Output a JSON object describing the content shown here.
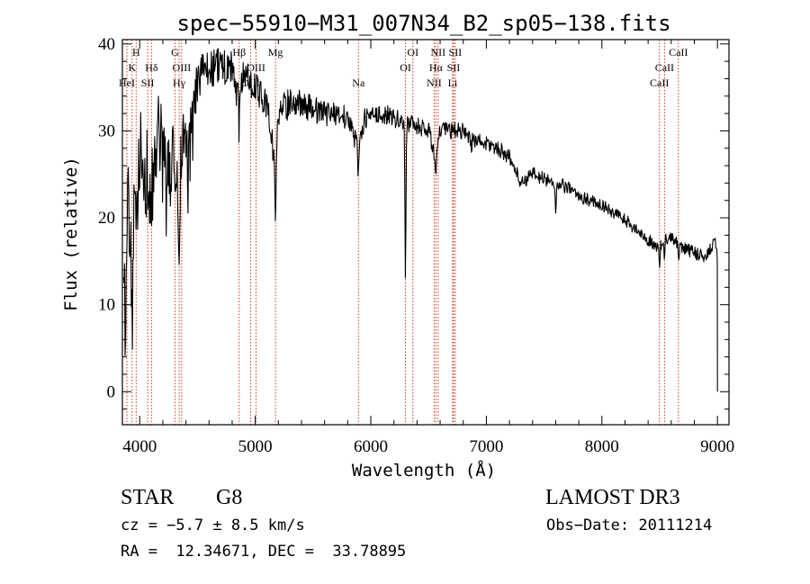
{
  "chart_data": {
    "type": "line",
    "title": "spec−55910−M31_007N34_B2_sp05−138.fits",
    "xlabel": "Wavelength (Å)",
    "ylabel": "Flux (relative)",
    "xlim": [
      3850,
      9100
    ],
    "ylim": [
      -3.8,
      40.5
    ],
    "xticks": [
      4000,
      5000,
      6000,
      7000,
      8000,
      9000
    ],
    "yticks": [
      0,
      10,
      20,
      30,
      40
    ],
    "grid": false,
    "series": [
      {
        "name": "flux",
        "anchors": [
          [
            3880,
            10
          ],
          [
            3900,
            22
          ],
          [
            3930,
            14
          ],
          [
            3960,
            20
          ],
          [
            4000,
            28
          ],
          [
            4040,
            26
          ],
          [
            4100,
            23
          ],
          [
            4150,
            30
          ],
          [
            4200,
            27
          ],
          [
            4250,
            24
          ],
          [
            4300,
            28
          ],
          [
            4330,
            20
          ],
          [
            4380,
            30
          ],
          [
            4420,
            25
          ],
          [
            4500,
            36
          ],
          [
            4600,
            37
          ],
          [
            4700,
            37.5
          ],
          [
            4800,
            37
          ],
          [
            4861,
            33
          ],
          [
            4900,
            37
          ],
          [
            5000,
            35
          ],
          [
            5100,
            33
          ],
          [
            5175,
            26
          ],
          [
            5200,
            32
          ],
          [
            5300,
            33.5
          ],
          [
            5400,
            33
          ],
          [
            5500,
            32.5
          ],
          [
            5600,
            32
          ],
          [
            5700,
            32
          ],
          [
            5800,
            31.5
          ],
          [
            5893,
            28
          ],
          [
            5950,
            31.5
          ],
          [
            6000,
            31.5
          ],
          [
            6100,
            32
          ],
          [
            6200,
            31.5
          ],
          [
            6300,
            31
          ],
          [
            6400,
            30.5
          ],
          [
            6500,
            30
          ],
          [
            6563,
            27
          ],
          [
            6600,
            30
          ],
          [
            6700,
            30
          ],
          [
            6800,
            30
          ],
          [
            6900,
            29
          ],
          [
            7000,
            28.5
          ],
          [
            7100,
            28
          ],
          [
            7200,
            27
          ],
          [
            7300,
            24
          ],
          [
            7400,
            25
          ],
          [
            7500,
            24.5
          ],
          [
            7600,
            24
          ],
          [
            7700,
            23.5
          ],
          [
            7800,
            22.5
          ],
          [
            7900,
            22
          ],
          [
            8000,
            21.5
          ],
          [
            8100,
            20.5
          ],
          [
            8200,
            19.8
          ],
          [
            8300,
            18.5
          ],
          [
            8400,
            17.5
          ],
          [
            8498,
            16.5
          ],
          [
            8542,
            17.5
          ],
          [
            8600,
            18
          ],
          [
            8662,
            17
          ],
          [
            8700,
            16.5
          ],
          [
            8800,
            16
          ],
          [
            8900,
            15.5
          ],
          [
            8980,
            17.5
          ],
          [
            9000,
            15.5
          ]
        ],
        "absorption_features": [
          [
            3934,
            7
          ],
          [
            3968,
            6
          ],
          [
            4101,
            5
          ],
          [
            4226,
            4
          ],
          [
            4300,
            6
          ],
          [
            4340,
            5
          ],
          [
            4861,
            3
          ],
          [
            5175,
            6
          ],
          [
            5270,
            2
          ],
          [
            5893,
            3
          ],
          [
            6300,
            18
          ],
          [
            6563,
            3
          ],
          [
            6870,
            2
          ],
          [
            7600,
            4
          ],
          [
            8498,
            2
          ],
          [
            8542,
            2
          ],
          [
            8662,
            2
          ]
        ],
        "noise_scale": [
          [
            3850,
            6
          ],
          [
            4450,
            5
          ],
          [
            4500,
            2.5
          ],
          [
            5000,
            1.8
          ],
          [
            6000,
            1.2
          ],
          [
            7000,
            0.9
          ],
          [
            8000,
            0.7
          ],
          [
            9000,
            0.8
          ]
        ]
      }
    ],
    "spectral_lines": [
      {
        "name": "K",
        "wavelength": 3934,
        "row": 1
      },
      {
        "name": "H",
        "wavelength": 3969,
        "row": 0
      },
      {
        "name": "HeI",
        "wavelength": 3889,
        "row": 2
      },
      {
        "name": "SII",
        "wavelength": 4069,
        "row": 2
      },
      {
        "name": "Hδ",
        "wavelength": 4102,
        "row": 1
      },
      {
        "name": "G",
        "wavelength": 4305,
        "row": 0
      },
      {
        "name": "OIII",
        "wavelength": 4363,
        "row": 1
      },
      {
        "name": "Hγ",
        "wavelength": 4341,
        "row": 2
      },
      {
        "name": "Hβ",
        "wavelength": 4861,
        "row": 0
      },
      {
        "name": "OIII",
        "wavelength": 4959,
        "row": 2
      },
      {
        "name": "OIII",
        "wavelength": 5007,
        "row": 1
      },
      {
        "name": "Mg",
        "wavelength": 5175,
        "row": 0
      },
      {
        "name": "Na",
        "wavelength": 5893,
        "row": 2
      },
      {
        "name": "OI",
        "wavelength": 6300,
        "row": 1
      },
      {
        "name": "OI",
        "wavelength": 6364,
        "row": 0
      },
      {
        "name": "NII",
        "wavelength": 6548,
        "row": 2
      },
      {
        "name": "NII",
        "wavelength": 6583,
        "row": 0
      },
      {
        "name": "Hα",
        "wavelength": 6563,
        "row": 1
      },
      {
        "name": "SII",
        "wavelength": 6716,
        "row": 1
      },
      {
        "name": "SII",
        "wavelength": 6731,
        "row": 0
      },
      {
        "name": "Li",
        "wavelength": 6708,
        "row": 2
      },
      {
        "name": "CaII",
        "wavelength": 8498,
        "row": 2
      },
      {
        "name": "CaII",
        "wavelength": 8542,
        "row": 1
      },
      {
        "name": "CaII",
        "wavelength": 8662,
        "row": 0
      }
    ]
  },
  "info": {
    "object_class": "STAR",
    "subclass": "G8",
    "survey": "LAMOST DR3",
    "redshift": "cz = −5.7 ± 8.5 km/s",
    "obs_date": "Obs−Date: 20111214",
    "coords": "RA =  12.34671, DEC =  33.78895"
  },
  "colors": {
    "line_marker": "#cc2200",
    "spectrum": "#000000",
    "background": "#ffffff"
  }
}
